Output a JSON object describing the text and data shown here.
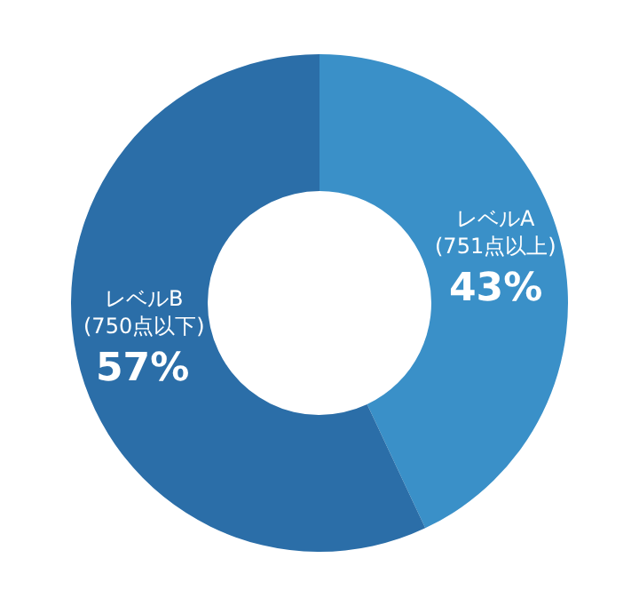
{
  "chart_data": {
    "type": "donut",
    "categories": [
      "レベルA\n(751点以上)",
      "レベルB\n(750点以下)"
    ],
    "values": [
      43,
      57
    ],
    "colors": [
      "#3a90c8",
      "#2b6ea8"
    ],
    "value_labels": [
      "43%",
      "57%"
    ],
    "data_labels": true,
    "legend": false
  }
}
